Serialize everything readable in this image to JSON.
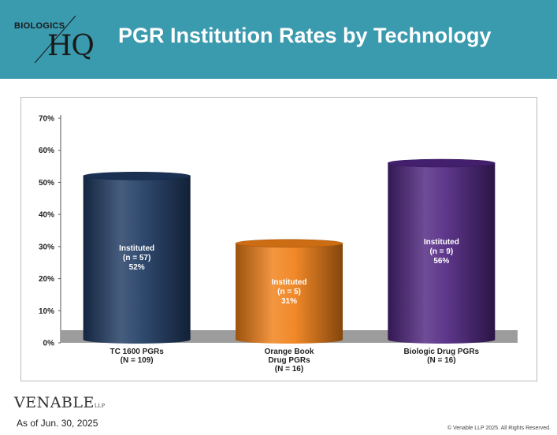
{
  "header": {
    "logo_top": "BIOLOGICS",
    "logo_hq": "HQ",
    "title": "PGR Institution Rates by Technology"
  },
  "chart_data": {
    "type": "bar",
    "title": "",
    "xlabel": "",
    "ylabel": "",
    "ylim": [
      0,
      70
    ],
    "yticks": [
      "0%",
      "10%",
      "20%",
      "30%",
      "40%",
      "50%",
      "60%",
      "70%"
    ],
    "grid": false,
    "categories": [
      {
        "lines": [
          "TC 1600 PGRs",
          "(N = 109)"
        ]
      },
      {
        "lines": [
          "Orange Book",
          "Drug PGRs",
          "(N = 16)"
        ]
      },
      {
        "lines": [
          "Biologic Drug PGRs",
          "(N = 16)"
        ]
      }
    ],
    "values": [
      52,
      31,
      56
    ],
    "bar_labels": [
      [
        "Instituted",
        "(n = 57)",
        "52%"
      ],
      [
        "Instituted",
        "(n = 5)",
        "31%"
      ],
      [
        "Instituted",
        "(n = 9)",
        "56%"
      ]
    ],
    "colors": [
      "#1e3a62",
      "#f07f16",
      "#4f2580"
    ]
  },
  "footer": {
    "logo": "VENABLE",
    "logo_suffix": "LLP",
    "as_of": "As of Jun. 30, 2025",
    "copyright": "© Venable LLP 2025. All Rights Reserved."
  }
}
